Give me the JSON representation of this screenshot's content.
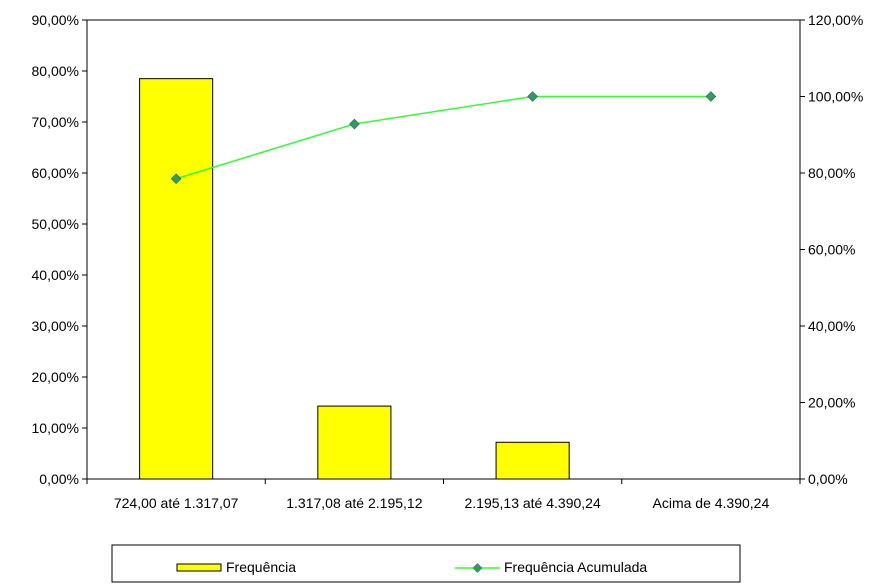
{
  "chart_data": {
    "type": "bar",
    "categories": [
      "724,00 até 1.317,07",
      "1.317,08 até 2.195,12",
      "2.195,13 até 4.390,24",
      "Acima de 4.390,24"
    ],
    "series": [
      {
        "name": "Frequência",
        "type": "bar",
        "axis": "left",
        "values": [
          78.5,
          14.3,
          7.2,
          0
        ],
        "color": "#FFFF00"
      },
      {
        "name": "Frequência Acumulada",
        "type": "line",
        "axis": "right",
        "values": [
          78.5,
          92.8,
          100,
          100
        ],
        "color": "#33FF33",
        "marker_color": "#339966"
      }
    ],
    "y_left": {
      "lim": [
        0,
        90
      ],
      "ticks": [
        0,
        10,
        20,
        30,
        40,
        50,
        60,
        70,
        80,
        90
      ],
      "tick_labels": [
        "0,00%",
        "10,00%",
        "20,00%",
        "30,00%",
        "40,00%",
        "50,00%",
        "60,00%",
        "70,00%",
        "80,00%",
        "90,00%"
      ]
    },
    "y_right": {
      "lim": [
        0,
        120
      ],
      "ticks": [
        0,
        20,
        40,
        60,
        80,
        100,
        120
      ],
      "tick_labels": [
        "0,00%",
        "20,00%",
        "40,00%",
        "60,00%",
        "80,00%",
        "100,00%",
        "120,00%"
      ]
    },
    "title": "",
    "xlabel": "",
    "ylabel": "",
    "grid": false,
    "legend_position": "bottom"
  }
}
